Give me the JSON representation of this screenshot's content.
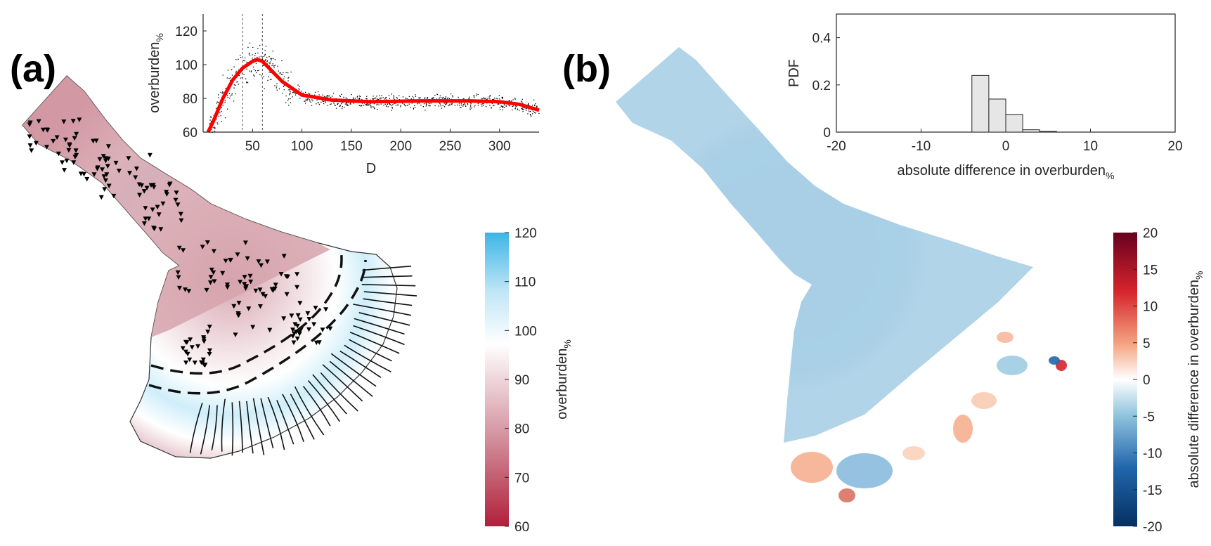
{
  "panels": {
    "a": {
      "label": "(a)"
    },
    "b": {
      "label": "(b)"
    }
  },
  "map_a": {
    "colorbar": {
      "label_base": "overburden",
      "label_sub": "%",
      "ticks": [
        "120",
        "110",
        "100",
        "90",
        "80",
        "70",
        "60"
      ],
      "range": [
        60,
        120
      ]
    },
    "colors": {
      "high": "#3db5e6",
      "mid": "#ffffff",
      "low": "#b0203a",
      "fill": "#d6a3ad"
    }
  },
  "map_b": {
    "colorbar": {
      "label_base": "absolute difference in overburden",
      "label_sub": "%",
      "ticks": [
        "20",
        "15",
        "10",
        "5",
        "0",
        "-5",
        "-10",
        "-15",
        "-20"
      ],
      "range": [
        -20,
        20
      ]
    },
    "colors": {
      "high": "#67001f",
      "mid": "#ffffff",
      "low": "#053061",
      "fill": "#a9cfe6"
    }
  },
  "chart_data": [
    {
      "type": "scatter",
      "title": "",
      "xlabel": "D",
      "ylabel_base": "overburden",
      "ylabel_sub": "%",
      "xlim": [
        0,
        340
      ],
      "ylim": [
        60,
        130
      ],
      "xticks": [
        50,
        100,
        150,
        200,
        250,
        300
      ],
      "yticks": [
        60,
        80,
        100,
        120
      ],
      "vlines": [
        40,
        60
      ],
      "series": [
        {
          "kind": "trend",
          "color": "#ff0000",
          "x": [
            5,
            10,
            20,
            30,
            40,
            50,
            55,
            60,
            70,
            80,
            100,
            130,
            170,
            220,
            270,
            300,
            320,
            340
          ],
          "y": [
            60,
            66,
            80,
            91,
            98,
            102,
            103,
            102,
            96,
            90,
            82,
            79,
            78,
            78.5,
            78.5,
            78,
            76.5,
            73
          ]
        }
      ]
    },
    {
      "type": "bar",
      "title": "",
      "xlabel_base": "absolute difference in overburden",
      "xlabel_sub": "%",
      "ylabel": "PDF",
      "xlim": [
        -20,
        20
      ],
      "ylim": [
        0,
        0.5
      ],
      "xticks": [
        -20,
        -10,
        0,
        10,
        20
      ],
      "yticks": [
        0,
        0.2,
        0.4
      ],
      "bin_edges": [
        -4,
        -2,
        0,
        2,
        4,
        6
      ],
      "values": [
        0.24,
        0.14,
        0.075,
        0.01,
        0.003
      ],
      "color": "#e6e6e6"
    }
  ]
}
